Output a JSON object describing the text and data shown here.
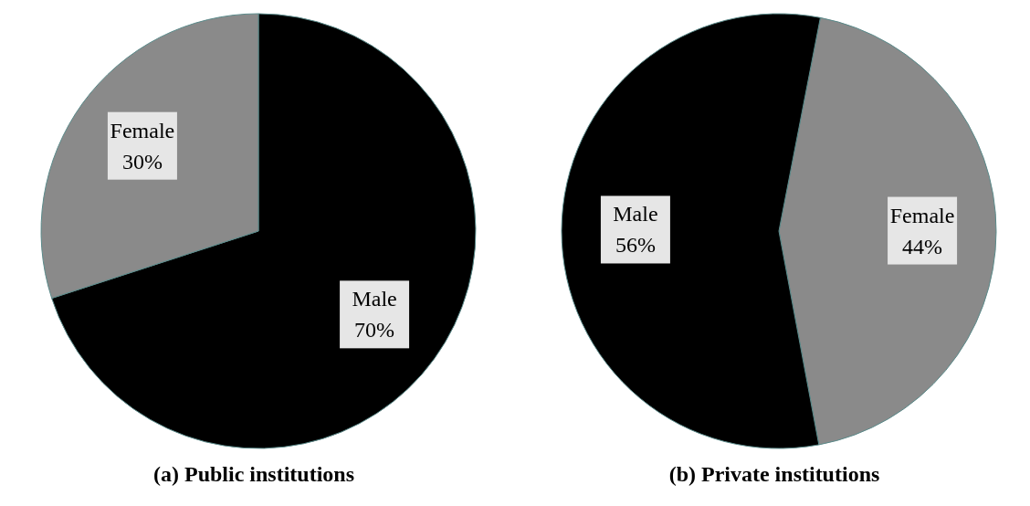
{
  "chart_data": [
    {
      "type": "pie",
      "title": "(a) Public institutions",
      "categories": [
        "Male",
        "Female"
      ],
      "values": [
        70,
        30
      ],
      "colors": [
        "#000000",
        "#8a8a8a"
      ],
      "value_labels": [
        "70%",
        "30%"
      ]
    },
    {
      "type": "pie",
      "title": "(b) Private institutions",
      "categories": [
        "Female",
        "Male"
      ],
      "values": [
        44,
        56
      ],
      "colors": [
        "#8a8a8a",
        "#000000"
      ],
      "value_labels": [
        "44%",
        "56%"
      ]
    }
  ]
}
